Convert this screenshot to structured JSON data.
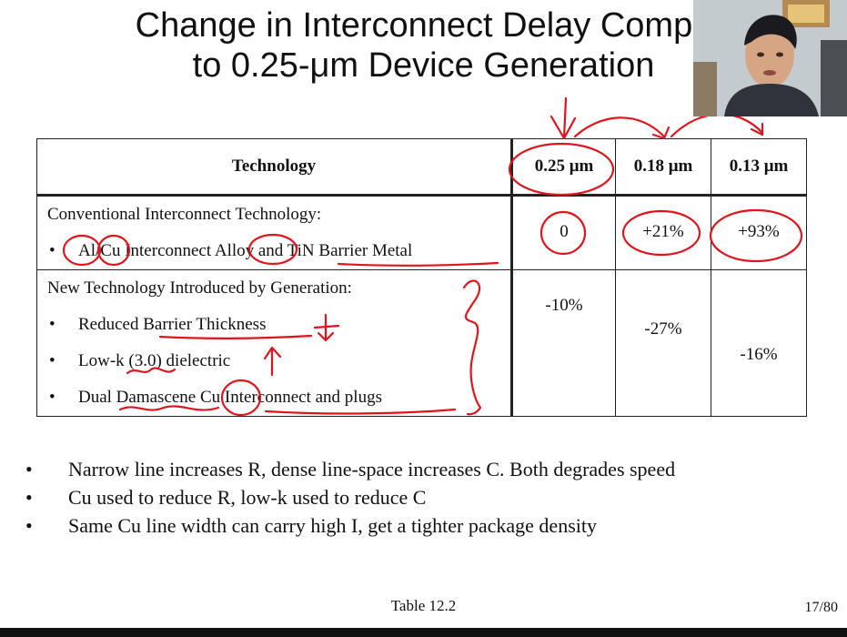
{
  "slide": {
    "title_line1": "Change in Interconnect Delay Compa",
    "title_line2": "to 0.25-μm Device Generation"
  },
  "table": {
    "headers": [
      "Technology",
      "0.25 μm",
      "0.18 μm",
      "0.13 μm"
    ],
    "conventional": {
      "heading": "Conventional Interconnect Technology:",
      "bullet": "Al/Cu Interconnect Alloy and TiN Barrier Metal",
      "values": [
        "0",
        "+21%",
        "+93%"
      ]
    },
    "new_tech": {
      "heading": "New Technology Introduced by Generation:",
      "bullets": [
        "Reduced Barrier Thickness",
        "Low-k (3.0) dielectric",
        "Dual Damascene Cu Interconnect and plugs"
      ],
      "values": [
        "-10%",
        "-27%",
        "-16%"
      ]
    }
  },
  "notes": [
    "Narrow line increases R, dense line-space increases C. Both degrades speed",
    "Cu used to reduce R, low-k used to reduce C",
    "Same Cu line width can carry high I, get a tighter package density"
  ],
  "footer": {
    "caption": "Table 12.2",
    "page_number": "17/80"
  },
  "colors": {
    "ink": "#e0141c",
    "text": "#111111",
    "background": "#ffffff"
  }
}
